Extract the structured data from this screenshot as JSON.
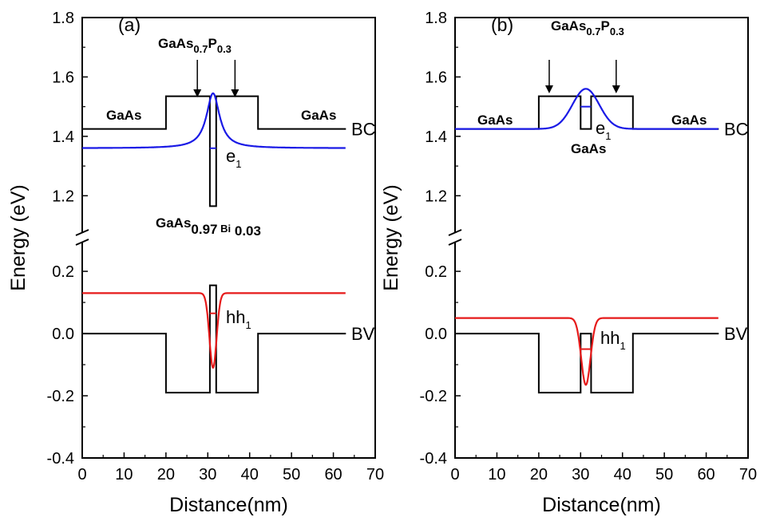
{
  "chart_data": [
    {
      "panel_label": "(a)",
      "type": "line",
      "xlabel": "Distance(nm)",
      "ylabel": "Energy (eV)",
      "xlim": [
        0,
        70
      ],
      "x_ticks": [
        "0",
        "10",
        "20",
        "30",
        "40",
        "50",
        "60",
        "70"
      ],
      "y_axis_broken": true,
      "y_ticks_upper": [
        "1.2",
        "1.4",
        "1.6",
        "1.8"
      ],
      "y_ticks_lower": [
        "-0.4",
        "-0.2",
        "0.0",
        "0.2"
      ],
      "ylim_upper": [
        1.08,
        1.8
      ],
      "ylim_lower": [
        -0.4,
        0.29
      ],
      "band_labels": {
        "bc": "BC",
        "bv": "BV"
      },
      "top_region_label": {
        "main": "GaAs",
        "sub1": "0.7",
        "mid": "P",
        "sub2": "0.3"
      },
      "left_region_label": "GaAs",
      "right_region_label": "GaAs",
      "well_label": {
        "main": "GaAs",
        "sub1": "0.97",
        "mid": " Bi",
        "sub2": " 0.03"
      },
      "electron_label": {
        "main": "e",
        "sub": "1"
      },
      "hole_label": {
        "main": "hh",
        "sub": "1"
      },
      "arrow_x": [
        27.5,
        36.5
      ],
      "bc_profile": {
        "x": [
          0,
          20,
          20,
          30.5,
          30.5,
          32,
          32,
          42,
          42,
          63
        ],
        "y": [
          1.425,
          1.425,
          1.535,
          1.535,
          1.165,
          1.165,
          1.535,
          1.535,
          1.425,
          1.425
        ]
      },
      "bv_profile": {
        "x": [
          0,
          20,
          20,
          30.5,
          30.5,
          32,
          32,
          42,
          42,
          63
        ],
        "y": [
          0.0,
          0.0,
          -0.19,
          -0.19,
          0.155,
          0.155,
          -0.19,
          -0.19,
          0.0,
          0.0
        ]
      },
      "electron_level": {
        "energy": 1.36,
        "x_range": [
          30.5,
          32
        ]
      },
      "electron_wavefunction": {
        "baseline": 1.36,
        "peak": 1.545,
        "center": 31.25,
        "width": 1.9,
        "shape": "lorentzian"
      },
      "hole_level": {
        "energy": 0.065,
        "x_range": [
          30.5,
          32
        ]
      },
      "hole_wavefunction": {
        "baseline": 0.13,
        "peak": -0.11,
        "center": 31.25,
        "width": 0.85,
        "shape": "gaussian"
      },
      "colors": {
        "profile": "#000000",
        "electron": "#1a1ae6",
        "hole": "#e61a1a"
      }
    },
    {
      "panel_label": "(b)",
      "type": "line",
      "xlabel": "Distance(nm)",
      "ylabel": "Energy (eV)",
      "xlim": [
        0,
        70
      ],
      "x_ticks": [
        "0",
        "10",
        "20",
        "30",
        "40",
        "50",
        "60",
        "70"
      ],
      "y_axis_broken": true,
      "y_ticks_upper": [
        "1.2",
        "1.4",
        "1.6",
        "1.8"
      ],
      "y_ticks_lower": [
        "-0.4",
        "-0.2",
        "0.0",
        "0.2"
      ],
      "ylim_upper": [
        1.08,
        1.8
      ],
      "ylim_lower": [
        -0.4,
        0.29
      ],
      "band_labels": {
        "bc": "BC",
        "bv": "BV"
      },
      "top_region_label": {
        "main": "GaAs",
        "sub1": "0.7",
        "mid": "P",
        "sub2": "0.3"
      },
      "left_region_label": "GaAs",
      "right_region_label": "GaAs",
      "well_label": {
        "main": "GaAs",
        "sub1": "",
        "mid": "",
        "sub2": ""
      },
      "electron_label": {
        "main": "e",
        "sub": "1"
      },
      "hole_label": {
        "main": "hh",
        "sub": "1"
      },
      "arrow_x": [
        22.5,
        38.5
      ],
      "bc_profile": {
        "x": [
          0,
          20,
          20,
          30,
          30,
          32.5,
          32.5,
          42.5,
          42.5,
          63
        ],
        "y": [
          1.425,
          1.425,
          1.535,
          1.535,
          1.425,
          1.425,
          1.535,
          1.535,
          1.425,
          1.425
        ]
      },
      "bv_profile": {
        "x": [
          0,
          20,
          20,
          30,
          30,
          32.5,
          32.5,
          42.5,
          42.5,
          63
        ],
        "y": [
          0.0,
          0.0,
          -0.19,
          -0.19,
          0.0,
          0.0,
          -0.19,
          -0.19,
          0.0,
          0.0
        ]
      },
      "electron_level": {
        "energy": 1.5,
        "x_range": [
          30,
          32.5
        ]
      },
      "electron_wavefunction": {
        "baseline": 1.425,
        "peak": 1.56,
        "center": 31.25,
        "width": 3.2,
        "shape": "gaussian"
      },
      "hole_level": {
        "energy": -0.05,
        "x_range": [
          30,
          32.5
        ]
      },
      "hole_wavefunction": {
        "baseline": 0.05,
        "peak": -0.165,
        "center": 31.25,
        "width": 1.1,
        "shape": "gaussian"
      },
      "colors": {
        "profile": "#000000",
        "electron": "#1a1ae6",
        "hole": "#e61a1a"
      }
    }
  ]
}
